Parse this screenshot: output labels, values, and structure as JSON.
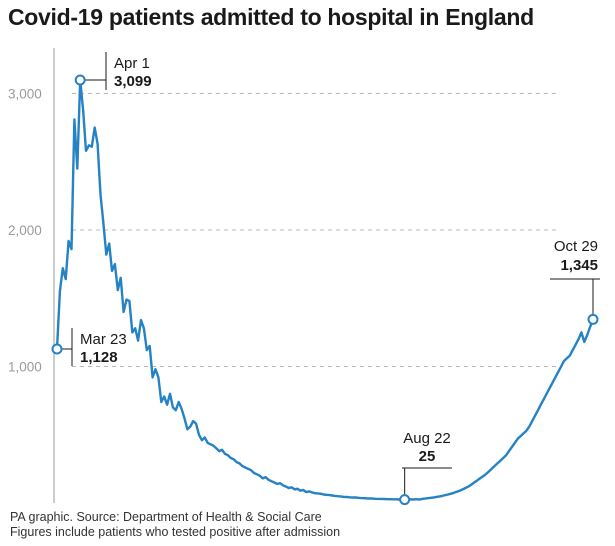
{
  "title": "Covid-19 patients admitted to hospital in England",
  "footer": {
    "source": "PA graphic. Source: Department of Health & Social Care",
    "note": "Figures include patients who tested positive after admission"
  },
  "colors": {
    "line": "#2582c4",
    "grid": "#b8b8b8",
    "axis": "#9a9a9a",
    "text": "#1a1a1a"
  },
  "chart_data": {
    "type": "line",
    "title": "Covid-19 patients admitted to hospital in England",
    "xlabel": "",
    "ylabel": "",
    "ylim": [
      0,
      3300
    ],
    "yticks": [
      {
        "value": 1000,
        "label": "1,000"
      },
      {
        "value": 2000,
        "label": "2,000"
      },
      {
        "value": 3000,
        "label": "3,000"
      }
    ],
    "grid": "horizontal dashed",
    "x_start": "Mar 23",
    "x_end": "Oct 29",
    "series": [
      {
        "values": [
          1128,
          1550,
          1720,
          1640,
          1920,
          1860,
          2810,
          2450,
          3099,
          2880,
          2580,
          2620,
          2610,
          2750,
          2630,
          2260,
          2050,
          1820,
          1900,
          1700,
          1750,
          1560,
          1650,
          1400,
          1490,
          1480,
          1250,
          1280,
          1190,
          1340,
          1280,
          1120,
          1150,
          920,
          980,
          920,
          740,
          780,
          720,
          800,
          700,
          680,
          740,
          690,
          620,
          540,
          560,
          600,
          580,
          500,
          460,
          480,
          440,
          430,
          420,
          400,
          380,
          390,
          360,
          350,
          330,
          320,
          300,
          290,
          270,
          260,
          250,
          240,
          220,
          210,
          200,
          180,
          190,
          170,
          160,
          150,
          140,
          145,
          130,
          120,
          110,
          115,
          100,
          105,
          90,
          95,
          80,
          85,
          78,
          72,
          70,
          68,
          62,
          60,
          58,
          55,
          52,
          50,
          48,
          45,
          44,
          42,
          40,
          40,
          38,
          36,
          35,
          34,
          33,
          32,
          31,
          30,
          30,
          29,
          28,
          28,
          27,
          27,
          26,
          26,
          25,
          25,
          27,
          26,
          28,
          25,
          30,
          32,
          35,
          38,
          40,
          45,
          48,
          52,
          58,
          62,
          68,
          75,
          82,
          90,
          100,
          110,
          120,
          135,
          150,
          165,
          180,
          195,
          210,
          230,
          250,
          270,
          290,
          310,
          330,
          350,
          380,
          410,
          440,
          470,
          490,
          510,
          530,
          560,
          600,
          640,
          680,
          720,
          760,
          800,
          840,
          880,
          920,
          960,
          1000,
          1040,
          1060,
          1080,
          1120,
          1160,
          1200,
          1250,
          1180,
          1230,
          1290,
          1345
        ]
      }
    ],
    "annotations": [
      {
        "point": "start",
        "label": "Mar 23",
        "value": "1,128"
      },
      {
        "point": "peak",
        "label": "Apr 1",
        "value": "3,099"
      },
      {
        "point": "min",
        "label": "Aug 22",
        "value": "25"
      },
      {
        "point": "end",
        "label": "Oct 29",
        "value": "1,345"
      }
    ]
  }
}
